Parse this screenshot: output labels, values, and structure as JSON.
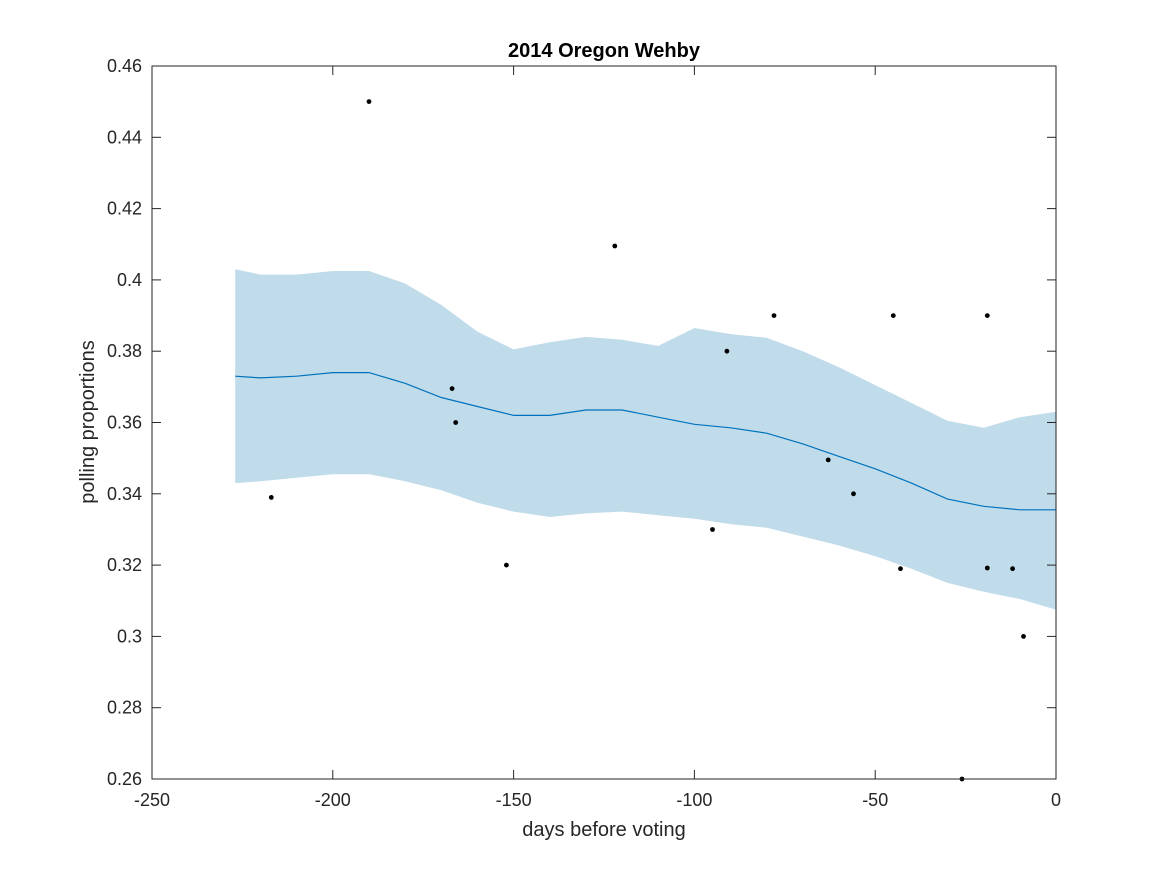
{
  "chart_data": {
    "type": "scatter",
    "title": "2014 Oregon Wehby",
    "xlabel": "days before voting",
    "ylabel": "polling proportions",
    "xlim": [
      -250,
      0
    ],
    "ylim": [
      0.26,
      0.46
    ],
    "xticks": [
      -250,
      -200,
      -150,
      -100,
      -50,
      0
    ],
    "xtick_labels": [
      "-250",
      "-200",
      "-150",
      "-100",
      "-50",
      "0"
    ],
    "yticks": [
      0.26,
      0.28,
      0.3,
      0.32,
      0.34,
      0.36,
      0.38,
      0.4,
      0.42,
      0.44,
      0.46
    ],
    "ytick_labels": [
      "0.26",
      "0.28",
      "0.3",
      "0.32",
      "0.34",
      "0.36",
      "0.38",
      "0.4",
      "0.42",
      "0.44",
      "0.46"
    ],
    "grid": false,
    "colors": {
      "band": "#c0dceb",
      "trend": "#0072bd",
      "points": "#000000",
      "axes": "#262626"
    },
    "series": [
      {
        "kind": "band",
        "x": [
          -227,
          -220,
          -210,
          -200,
          -190,
          -180,
          -170,
          -160,
          -150,
          -140,
          -130,
          -120,
          -110,
          -100,
          -90,
          -80,
          -70,
          -60,
          -50,
          -40,
          -30,
          -20,
          -10,
          0
        ],
        "upper": [
          0.403,
          0.4015,
          0.4015,
          0.4025,
          0.4025,
          0.399,
          0.393,
          0.3855,
          0.3805,
          0.3825,
          0.384,
          0.3832,
          0.3815,
          0.3865,
          0.3848,
          0.3838,
          0.38,
          0.3755,
          0.3705,
          0.3655,
          0.3605,
          0.3585,
          0.3615,
          0.363
        ],
        "lower": [
          0.343,
          0.3435,
          0.3445,
          0.3455,
          0.3455,
          0.3435,
          0.341,
          0.3375,
          0.335,
          0.3335,
          0.3345,
          0.335,
          0.334,
          0.333,
          0.3315,
          0.3305,
          0.328,
          0.3255,
          0.3225,
          0.319,
          0.315,
          0.3125,
          0.3105,
          0.3075
        ]
      },
      {
        "kind": "line",
        "x": [
          -227,
          -220,
          -210,
          -200,
          -190,
          -180,
          -170,
          -160,
          -150,
          -140,
          -130,
          -120,
          -110,
          -100,
          -90,
          -80,
          -70,
          -60,
          -50,
          -40,
          -30,
          -20,
          -10,
          0
        ],
        "y": [
          0.373,
          0.3725,
          0.373,
          0.374,
          0.374,
          0.371,
          0.367,
          0.3645,
          0.362,
          0.362,
          0.3635,
          0.3635,
          0.3615,
          0.3595,
          0.3585,
          0.357,
          0.354,
          0.3505,
          0.347,
          0.343,
          0.3385,
          0.3365,
          0.3355,
          0.3355
        ]
      },
      {
        "kind": "points",
        "x": [
          -217,
          -190,
          -167,
          -166,
          -152,
          -122,
          -95,
          -91,
          -78,
          -63,
          -56,
          -45,
          -43,
          -26,
          -19,
          -19,
          -12,
          -9
        ],
        "y": [
          0.339,
          0.45,
          0.3695,
          0.36,
          0.32,
          0.4095,
          0.33,
          0.38,
          0.39,
          0.3495,
          0.34,
          0.39,
          0.319,
          0.26,
          0.39,
          0.3192,
          0.319,
          0.3
        ]
      }
    ]
  }
}
